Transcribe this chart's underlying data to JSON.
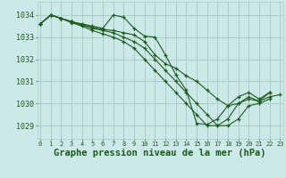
{
  "bg_color": "#cce8e8",
  "grid_color": "#aacccc",
  "line_color": "#1a5c1a",
  "marker_color": "#1a5c1a",
  "xlabel": "Graphe pression niveau de la mer (hPa)",
  "xlabel_fontsize": 7.5,
  "ylabel_ticks": [
    1029,
    1030,
    1031,
    1032,
    1033,
    1034
  ],
  "xticks": [
    0,
    1,
    2,
    3,
    4,
    5,
    6,
    7,
    8,
    9,
    10,
    11,
    12,
    13,
    14,
    15,
    16,
    17,
    18,
    19,
    20,
    21,
    22,
    23
  ],
  "ylim": [
    1028.4,
    1034.6
  ],
  "xlim": [
    -0.3,
    23.3
  ],
  "series": [
    [
      1033.6,
      1034.0,
      1033.85,
      1033.7,
      1033.6,
      1033.5,
      1033.4,
      1034.0,
      1033.9,
      1033.4,
      1033.05,
      1033.0,
      1032.2,
      1031.3,
      1030.6,
      1029.1,
      1029.05,
      1029.3,
      1029.9,
      1030.3,
      1030.5,
      1030.2,
      1030.5,
      null
    ],
    [
      1033.6,
      1034.0,
      1033.85,
      1033.7,
      1033.55,
      1033.45,
      1033.35,
      1033.3,
      1033.2,
      1033.1,
      1032.8,
      1032.2,
      1031.8,
      1031.6,
      1031.25,
      1031.0,
      1030.6,
      1030.2,
      1029.9,
      1030.0,
      1030.2,
      1030.1,
      1030.3,
      1030.4
    ],
    [
      1033.6,
      1034.0,
      1033.85,
      1033.7,
      1033.55,
      1033.4,
      1033.3,
      1033.2,
      1033.0,
      1032.8,
      1032.5,
      1032.0,
      1031.5,
      1031.0,
      1030.5,
      1030.0,
      1029.5,
      1029.0,
      1029.0,
      1029.3,
      1029.9,
      1030.0,
      1030.2,
      null
    ],
    [
      1033.6,
      1034.0,
      1033.85,
      1033.65,
      1033.5,
      1033.3,
      1033.15,
      1033.0,
      1032.8,
      1032.5,
      1032.0,
      1031.5,
      1031.0,
      1030.5,
      1030.0,
      1029.5,
      1029.0,
      1029.0,
      1029.3,
      1030.0,
      1030.3,
      1030.1,
      1030.5,
      null
    ]
  ]
}
